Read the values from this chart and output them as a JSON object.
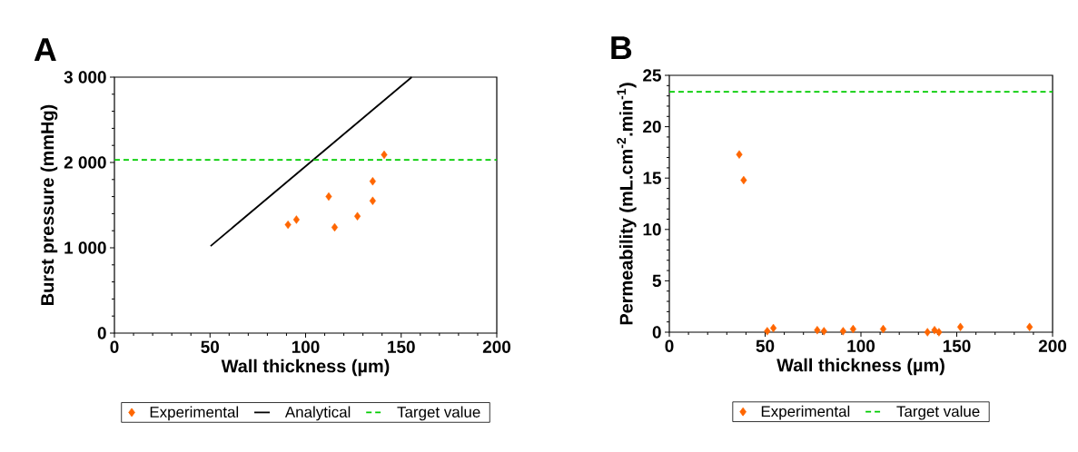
{
  "chart_data": [
    {
      "type": "scatter",
      "title": "A",
      "xlabel": "Wall thickness (µm)",
      "ylabel": "Burst pressure (mmHg)",
      "xlim": [
        0,
        200
      ],
      "xticks": [
        0,
        50,
        100,
        150,
        200
      ],
      "ylim": [
        0,
        3000
      ],
      "yticks": [
        0,
        {
          "value": 1000,
          "label": "1 000"
        },
        {
          "value": 2000,
          "label": "2 000"
        },
        {
          "value": 3000,
          "label": "3 000"
        }
      ],
      "legend": "bottom",
      "series": [
        {
          "name": "Experimental",
          "marker": "diamond",
          "color": "#ff6600",
          "x": [
            90.8,
            95.2,
            112.1,
            115.2,
            127.1,
            135.1,
            135.1,
            141.1
          ],
          "values": [
            1270,
            1330,
            1600,
            1240,
            1370,
            1780,
            1550,
            2090
          ]
        },
        {
          "name": "Analytical",
          "type": "line",
          "color": "#000000",
          "line_style": "solid",
          "x": [
            50.3,
            155.5
          ],
          "values": [
            1020,
            3000
          ]
        }
      ],
      "ref_lines": [
        {
          "axis": "y",
          "value": 2030,
          "label": "Target value",
          "color": "#00cc00",
          "line_style": "dashed"
        }
      ]
    },
    {
      "type": "scatter",
      "title": "B",
      "xlabel": "Wall thickness (µm)",
      "ylabel": "Permeability (mL.cm$^{-2}$.min$^{-1}$)",
      "xlim": [
        0,
        200
      ],
      "xticks": [
        0,
        50,
        100,
        150,
        200
      ],
      "ylim": [
        0,
        25
      ],
      "yticks": [
        0,
        5,
        10,
        15,
        20,
        25
      ],
      "legend": "bottom",
      "series": [
        {
          "name": "Experimental",
          "marker": "diamond",
          "color": "#ff6600",
          "x": [
            36.5,
            38.8,
            51.1,
            54.3,
            77.2,
            80.7,
            90.7,
            95.9,
            111.6,
            134.7,
            138.4,
            140.7,
            151.9,
            188
          ],
          "values": [
            17.3,
            14.8,
            0.1,
            0.4,
            0.2,
            0.1,
            0.1,
            0.3,
            0.3,
            0,
            0.2,
            0,
            0.5,
            0.5
          ]
        }
      ],
      "ref_lines": [
        {
          "axis": "y",
          "value": 23.4,
          "label": "Target value",
          "color": "#00cc00",
          "line_style": "dashed"
        }
      ]
    }
  ]
}
